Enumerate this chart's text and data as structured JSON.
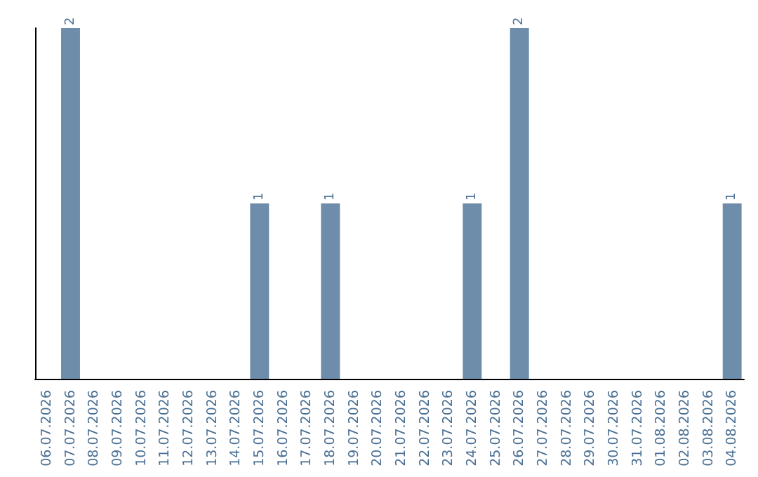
{
  "chart_data": {
    "type": "bar",
    "categories": [
      "06.07.2026",
      "07.07.2026",
      "08.07.2026",
      "09.07.2026",
      "10.07.2026",
      "11.07.2026",
      "12.07.2026",
      "13.07.2026",
      "14.07.2026",
      "15.07.2026",
      "16.07.2026",
      "17.07.2026",
      "18.07.2026",
      "19.07.2026",
      "20.07.2026",
      "21.07.2026",
      "22.07.2026",
      "23.07.2026",
      "24.07.2026",
      "25.07.2026",
      "26.07.2026",
      "27.07.2026",
      "28.07.2026",
      "29.07.2026",
      "30.07.2026",
      "31.07.2026",
      "01.08.2026",
      "02.08.2026",
      "03.08.2026",
      "04.08.2026"
    ],
    "values": [
      null,
      2,
      null,
      null,
      null,
      null,
      null,
      null,
      null,
      1,
      null,
      null,
      1,
      null,
      null,
      null,
      null,
      null,
      1,
      null,
      2,
      null,
      null,
      null,
      null,
      null,
      null,
      null,
      null,
      1
    ],
    "color": "#6d8dab",
    "data_labels": true,
    "tick_labels": "x"
  }
}
